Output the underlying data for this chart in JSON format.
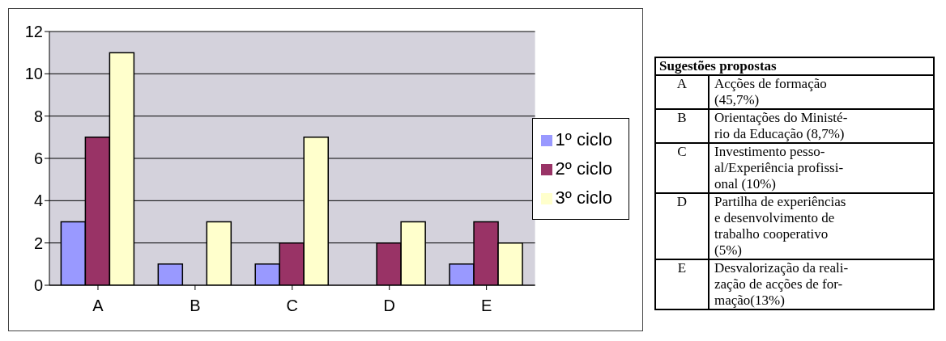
{
  "chart_data": [
    {
      "type": "bar",
      "categories": [
        "A",
        "B",
        "C",
        "D",
        "E"
      ],
      "series": [
        {
          "name": "1º ciclo",
          "color": "#9999ff",
          "values": [
            3,
            1,
            1,
            0,
            1
          ]
        },
        {
          "name": "2º ciclo",
          "color": "#993366",
          "values": [
            7,
            0,
            2,
            2,
            3
          ]
        },
        {
          "name": "3º ciclo",
          "color": "#ffffcc",
          "values": [
            11,
            3,
            7,
            3,
            2
          ]
        }
      ],
      "ylim": [
        0,
        12
      ],
      "yticks": [
        0,
        2,
        4,
        6,
        8,
        10,
        12
      ],
      "grid": "y",
      "legend": "right"
    },
    {
      "type": "other",
      "title": "Sugestões propostas",
      "annotations": [
        "A",
        "Acções de formação\n(45,7%)",
        "B",
        "Orientações do Ministé-\nrio da Educação (8,7%)",
        "C",
        "Investimento pesso-\nal/Experiência profissi-\nonal (10%)",
        "D",
        "Partilha de experiências\ne desenvolvimento de\ntrabalho cooperativo\n(5%)",
        "E",
        "Desvalorização da reali-\nzação de acções de for-\nmação(13%)"
      ]
    }
  ]
}
